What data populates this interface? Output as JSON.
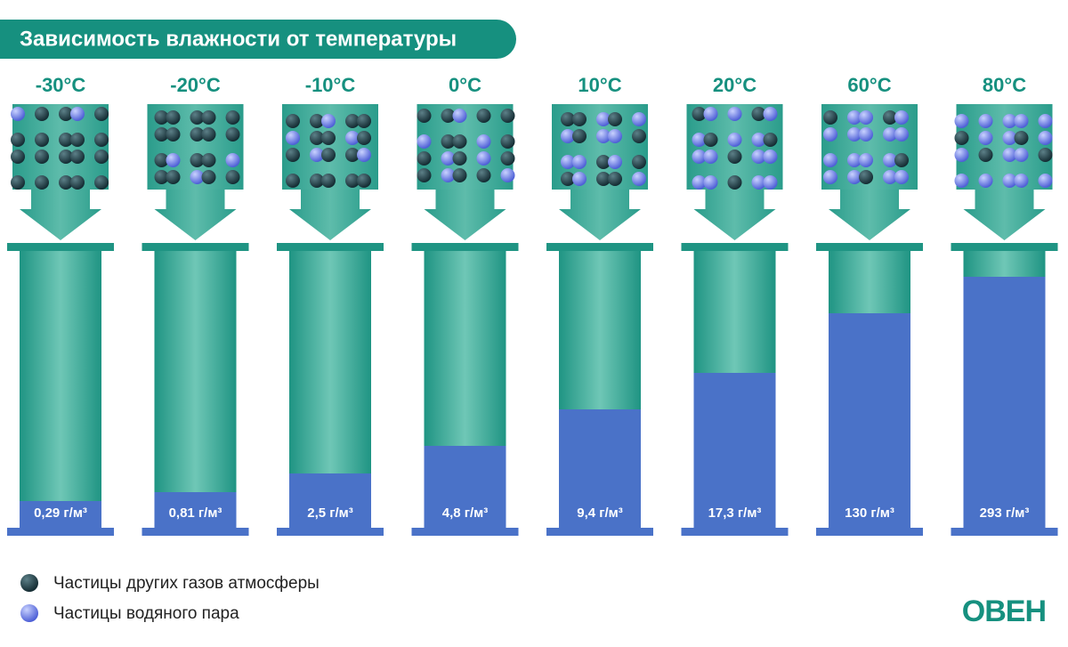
{
  "header": {
    "title": "Зависимость влажности от температуры"
  },
  "columns": [
    {
      "temperature": "-30°C",
      "value": "0,29 г/м³"
    },
    {
      "temperature": "-20°C",
      "value": "0,81 г/м³"
    },
    {
      "temperature": "-10°C",
      "value": "2,5 г/м³"
    },
    {
      "temperature": "0°C",
      "value": "4,8 г/м³"
    },
    {
      "temperature": "10°C",
      "value": "9,4 г/м³"
    },
    {
      "temperature": "20°C",
      "value": "17,3 г/м³"
    },
    {
      "temperature": "60°C",
      "value": "130 г/м³"
    },
    {
      "temperature": "80°C",
      "value": "293 г/м³"
    }
  ],
  "legend": [
    {
      "label": "Частицы других газов атмосферы"
    },
    {
      "label": "Частицы водяного пара"
    }
  ],
  "logo": "ОВЕН"
}
